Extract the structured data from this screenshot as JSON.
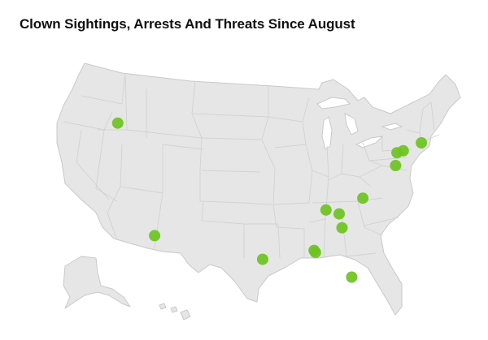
{
  "title": "Clown Sightings, Arrests And Threats Since August",
  "colors": {
    "land": "#e6e6e6",
    "border": "#c9c9c9",
    "marker": "#6cc31f",
    "title": "#111111"
  },
  "map": {
    "region": "United States",
    "incident_locations": [
      {
        "lon": -116.2,
        "lat": 43.6
      },
      {
        "lon": -110.9,
        "lat": 32.2
      },
      {
        "lon": -95.4,
        "lat": 29.8
      },
      {
        "lon": -88.0,
        "lat": 30.7
      },
      {
        "lon": -87.8,
        "lat": 30.5
      },
      {
        "lon": -86.3,
        "lat": 34.8
      },
      {
        "lon": -82.6,
        "lat": 28.0
      },
      {
        "lon": -84.4,
        "lat": 34.4
      },
      {
        "lon": -84.0,
        "lat": 33.0
      },
      {
        "lon": -81.0,
        "lat": 36.0
      },
      {
        "lon": -76.3,
        "lat": 39.3
      },
      {
        "lon": -76.1,
        "lat": 40.6
      },
      {
        "lon": -75.2,
        "lat": 40.8
      },
      {
        "lon": -72.6,
        "lat": 41.6
      }
    ]
  }
}
